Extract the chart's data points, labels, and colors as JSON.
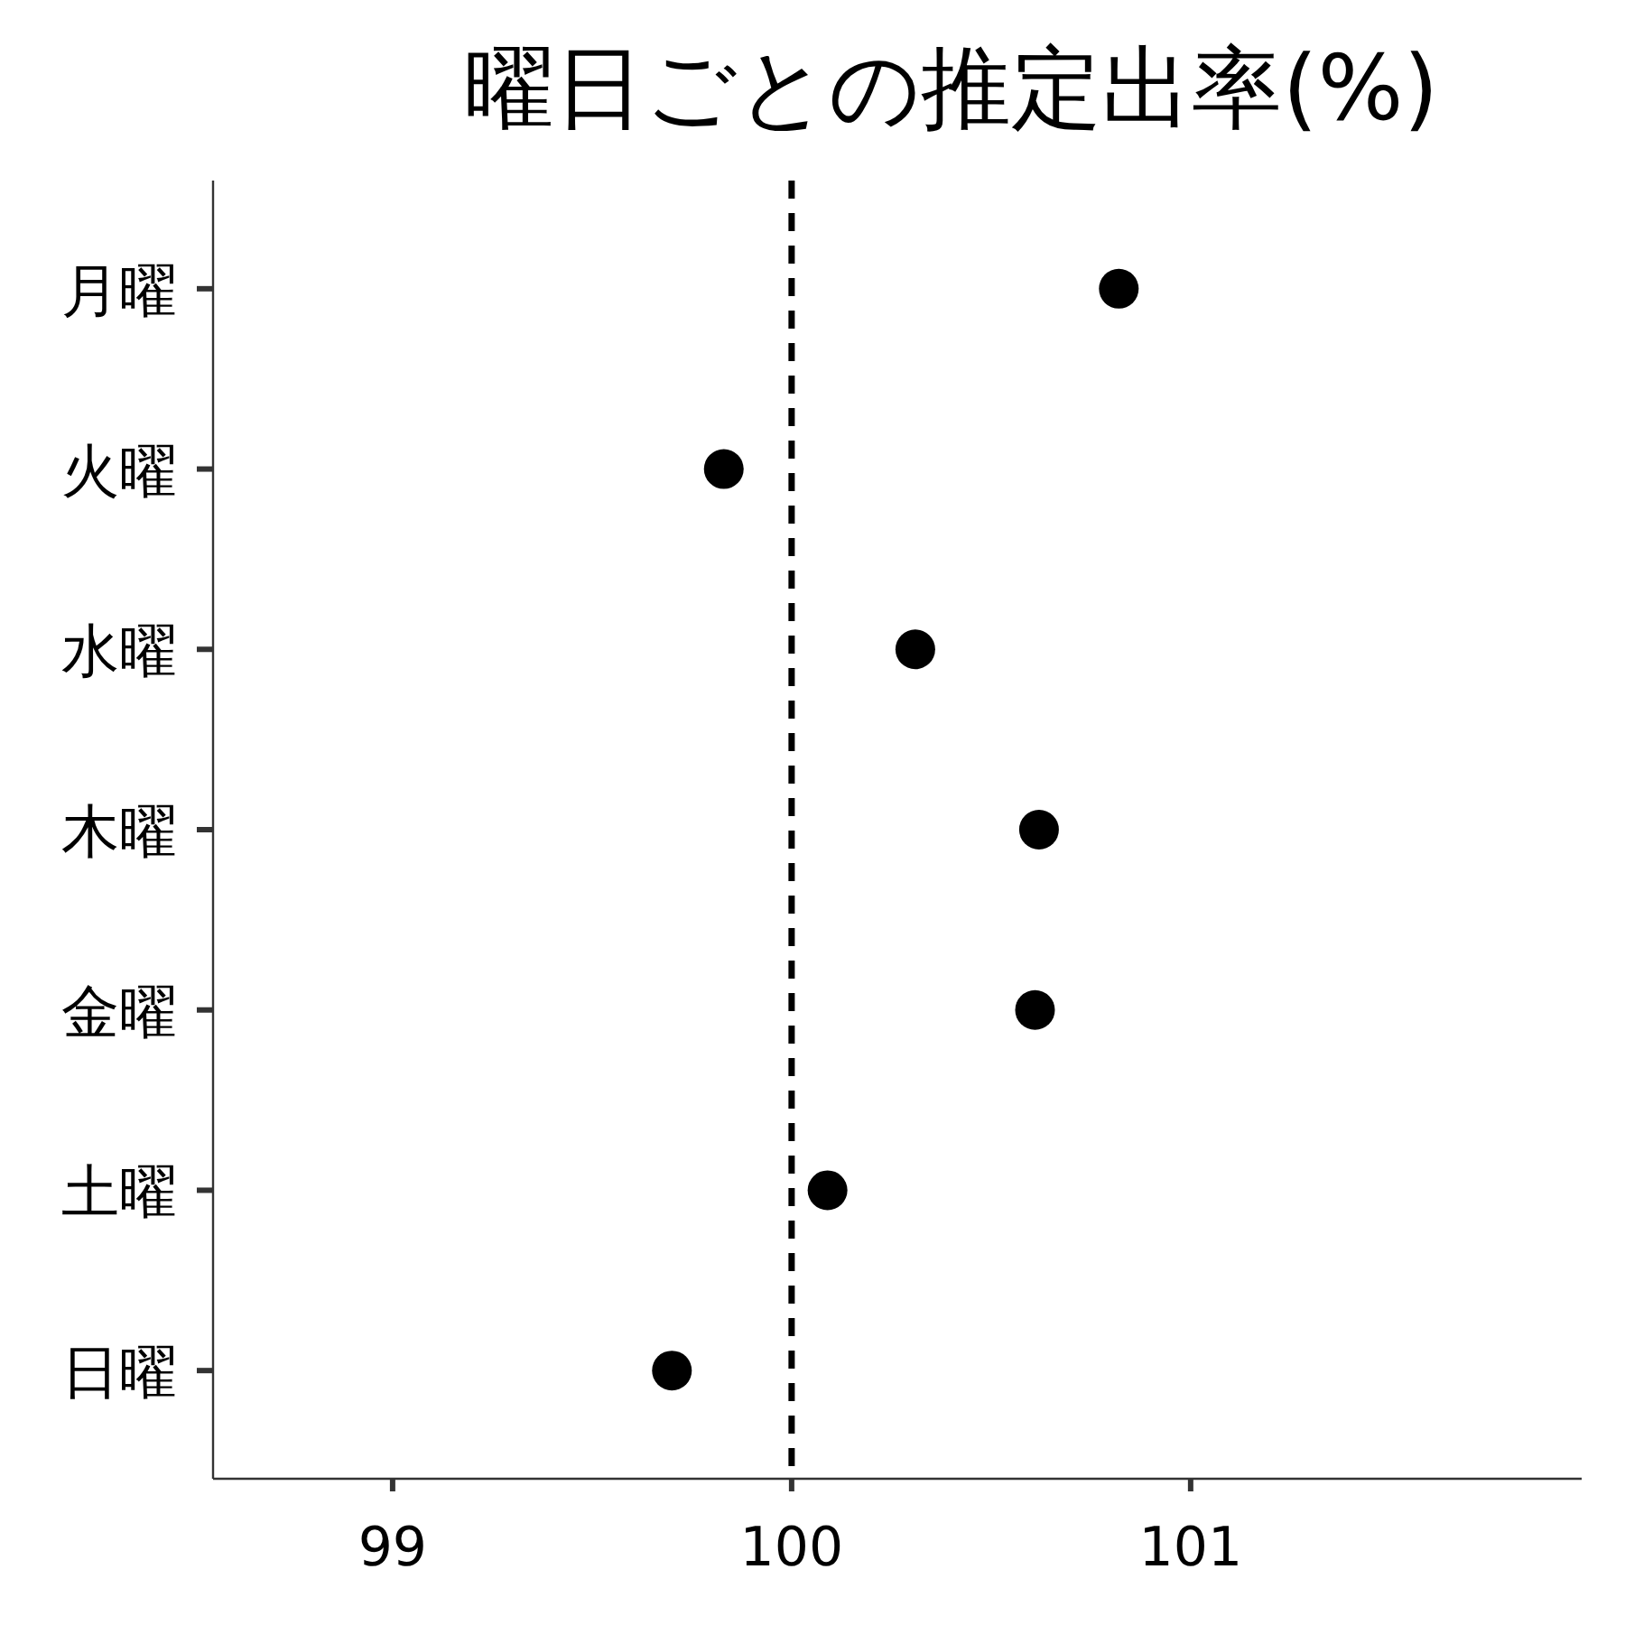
{
  "chart_data": {
    "type": "scatter",
    "title": "曜日ごとの推定出率(%)",
    "orientation": "horizontal",
    "categories": [
      "月曜",
      "火曜",
      "水曜",
      "木曜",
      "金曜",
      "土曜",
      "日曜"
    ],
    "series": [
      {
        "color": "#000000",
        "values": [
          100.82,
          99.83,
          100.31,
          100.62,
          100.61,
          100.09,
          99.7
        ]
      }
    ],
    "xlim": [
      98.55,
      101.98
    ],
    "xticks": [
      99,
      100,
      101
    ],
    "marker": "circle",
    "grid": false,
    "ref_lines": [
      {
        "axis": "x",
        "value": 100,
        "color": "#000000",
        "line_style": "dashed"
      }
    ]
  }
}
